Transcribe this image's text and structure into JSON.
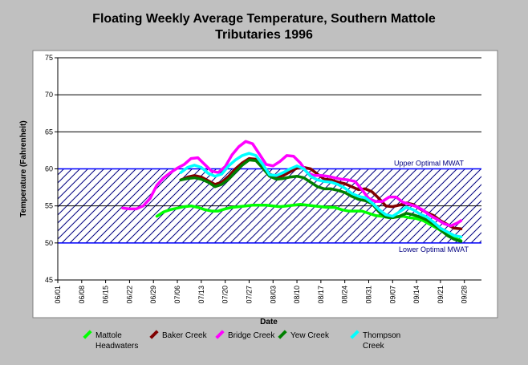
{
  "chart_data": {
    "type": "line",
    "title_lines": [
      "Floating Weekly Average Temperature, Southern Mattole",
      "Tributaries 1996"
    ],
    "xlabel": "Date",
    "ylabel": "Temperature (Fahrenheit)",
    "ylim": [
      45,
      75
    ],
    "yticks": [
      45,
      50,
      55,
      60,
      65,
      70,
      75
    ],
    "xticks": [
      "06/01",
      "06/08",
      "06/15",
      "06/22",
      "06/29",
      "07/06",
      "07/13",
      "07/20",
      "07/27",
      "08/03",
      "08/10",
      "08/17",
      "08/24",
      "08/31",
      "09/07",
      "09/14",
      "09/21",
      "09/28"
    ],
    "x_domain_days": [
      0,
      124
    ],
    "band": {
      "lower": 50,
      "upper": 60,
      "upper_label": "Upper Optimal MWAT",
      "lower_label": "Lower Optimal MWAT"
    },
    "grid": "horizontal",
    "legend_position": "bottom",
    "series": [
      {
        "name_lines": [
          "Mattole",
          "Headwaters"
        ],
        "color": "#00ff00",
        "x": [
          29,
          31,
          33,
          35,
          37,
          39,
          41,
          43,
          45,
          47,
          49,
          51,
          53,
          55,
          57,
          59,
          61,
          63,
          65,
          67,
          69,
          71,
          73,
          75,
          77,
          79,
          81,
          83,
          85,
          87,
          89,
          91,
          93,
          95,
          97,
          99,
          101,
          103,
          105,
          107,
          109,
          111,
          113,
          115,
          117,
          118
        ],
        "y": [
          53.6,
          54.2,
          54.5,
          54.7,
          54.9,
          55.0,
          54.8,
          54.5,
          54.3,
          54.3,
          54.6,
          54.8,
          54.9,
          55.0,
          55.1,
          55.1,
          55.1,
          55.0,
          54.9,
          55.0,
          55.1,
          55.2,
          55.1,
          55.0,
          54.9,
          54.8,
          54.8,
          54.5,
          54.3,
          54.3,
          54.3,
          54.0,
          53.7,
          53.6,
          53.4,
          53.5,
          53.6,
          53.4,
          53.3,
          53.0,
          52.5,
          52.0,
          51.4,
          50.9,
          50.5,
          50.3
        ]
      },
      {
        "name_lines": [
          "Baker Creek"
        ],
        "color": "#800000",
        "x": [
          36,
          38,
          40,
          42,
          44,
          46,
          48,
          50,
          52,
          54,
          56,
          58,
          60,
          62,
          64,
          66,
          68,
          70,
          72,
          74,
          76,
          78,
          80,
          82,
          84,
          86,
          88,
          90,
          92,
          94,
          96,
          98,
          100,
          102,
          104,
          106,
          108,
          110,
          112,
          114,
          116,
          118
        ],
        "y": [
          58.5,
          58.9,
          59.1,
          58.9,
          58.4,
          57.9,
          58.2,
          59.0,
          60.0,
          60.8,
          61.4,
          61.3,
          60.5,
          59.3,
          58.9,
          59.1,
          59.6,
          60.1,
          60.2,
          60.0,
          59.3,
          58.6,
          58.5,
          58.2,
          58.0,
          57.6,
          57.2,
          57.3,
          56.9,
          56.0,
          55.0,
          54.9,
          55.1,
          55.4,
          55.2,
          54.6,
          54.1,
          53.7,
          53.0,
          52.5,
          52.0,
          51.9
        ]
      },
      {
        "name_lines": [
          "Bridge Creek"
        ],
        "color": "#ff00ff",
        "x": [
          19,
          21,
          23,
          25,
          27,
          29,
          31,
          33,
          35,
          37,
          39,
          41,
          43,
          45,
          47,
          49,
          51,
          53,
          55,
          57,
          59,
          61,
          63,
          65,
          67,
          69,
          71,
          73,
          75,
          77,
          79,
          81,
          83,
          85,
          87,
          89,
          91,
          93,
          95,
          97,
          99,
          101,
          103,
          105,
          107,
          109,
          111,
          113,
          115,
          117,
          118
        ],
        "y": [
          54.7,
          54.6,
          54.6,
          55.0,
          56.0,
          57.8,
          58.8,
          59.5,
          60.1,
          60.6,
          61.4,
          61.5,
          60.6,
          59.7,
          59.5,
          60.3,
          61.9,
          63.0,
          63.7,
          63.4,
          62.0,
          60.6,
          60.4,
          61.0,
          61.8,
          61.7,
          60.8,
          59.5,
          59.1,
          59.1,
          59.0,
          58.8,
          58.6,
          58.5,
          58.3,
          57.2,
          56.0,
          55.6,
          55.6,
          56.2,
          56.2,
          55.5,
          55.2,
          54.9,
          54.4,
          53.7,
          53.2,
          52.6,
          52.3,
          52.7,
          53.0
        ]
      },
      {
        "name_lines": [
          "Yew Creek"
        ],
        "color": "#008000",
        "x": [
          36,
          38,
          40,
          42,
          44,
          46,
          48,
          50,
          52,
          54,
          56,
          58,
          60,
          62,
          64,
          66,
          68,
          70,
          72,
          74,
          76,
          78,
          80,
          82,
          84,
          86,
          88,
          90,
          92,
          94,
          96,
          98,
          100,
          102,
          104,
          106,
          108,
          110,
          112,
          114,
          116,
          118
        ],
        "y": [
          58.5,
          58.7,
          58.8,
          58.6,
          58.2,
          57.6,
          57.9,
          58.6,
          59.6,
          60.5,
          61.2,
          61.1,
          60.1,
          59.0,
          58.6,
          58.7,
          58.9,
          59.0,
          58.8,
          58.2,
          57.6,
          57.3,
          57.3,
          57.1,
          56.8,
          56.3,
          55.9,
          55.7,
          55.3,
          54.2,
          53.5,
          53.4,
          53.6,
          54.0,
          53.8,
          53.5,
          53.1,
          52.5,
          51.8,
          51.0,
          50.5,
          50.2
        ]
      },
      {
        "name_lines": [
          "Thompson",
          "Creek"
        ],
        "color": "#00ffff",
        "x": [
          36,
          38,
          40,
          42,
          44,
          46,
          48,
          50,
          52,
          54,
          56,
          58,
          60,
          62,
          64,
          66,
          68,
          70,
          72,
          74,
          76,
          78,
          80,
          82,
          84,
          86,
          88,
          90,
          92,
          94,
          96,
          98,
          100,
          102,
          104,
          106,
          108,
          110,
          112,
          114,
          116,
          118
        ],
        "y": [
          59.5,
          60.2,
          60.5,
          60.2,
          59.4,
          59.0,
          59.3,
          60.4,
          61.2,
          61.8,
          62.1,
          61.8,
          60.6,
          59.2,
          59.1,
          59.5,
          60.0,
          60.4,
          60.0,
          59.0,
          58.5,
          58.3,
          58.2,
          57.9,
          57.4,
          56.7,
          56.3,
          56.1,
          55.4,
          54.5,
          53.8,
          53.6,
          54.2,
          54.8,
          54.5,
          53.9,
          53.5,
          52.8,
          52.0,
          51.5,
          51.0,
          50.8
        ]
      }
    ]
  }
}
